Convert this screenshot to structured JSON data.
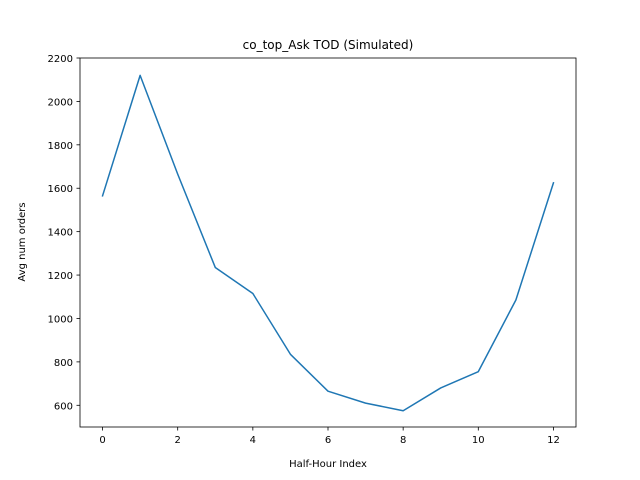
{
  "chart_data": {
    "type": "line",
    "title": "co_top_Ask TOD (Simulated)",
    "xlabel": "Half-Hour Index",
    "ylabel": "Avg num orders",
    "xlim": [
      -0.6,
      12.6
    ],
    "ylim": [
      500,
      2200
    ],
    "xticks": [
      0,
      2,
      4,
      6,
      8,
      10,
      12
    ],
    "yticks": [
      600,
      800,
      1000,
      1200,
      1400,
      1600,
      1800,
      2000,
      2200
    ],
    "grid": false,
    "series": [
      {
        "color": "#1f77b4",
        "x": [
          0,
          1,
          2,
          3,
          4,
          5,
          6,
          7,
          8,
          9,
          10,
          11,
          12
        ],
        "y": [
          1565,
          2120,
          1665,
          1235,
          1115,
          835,
          665,
          610,
          575,
          680,
          755,
          1085,
          1625
        ]
      }
    ]
  }
}
